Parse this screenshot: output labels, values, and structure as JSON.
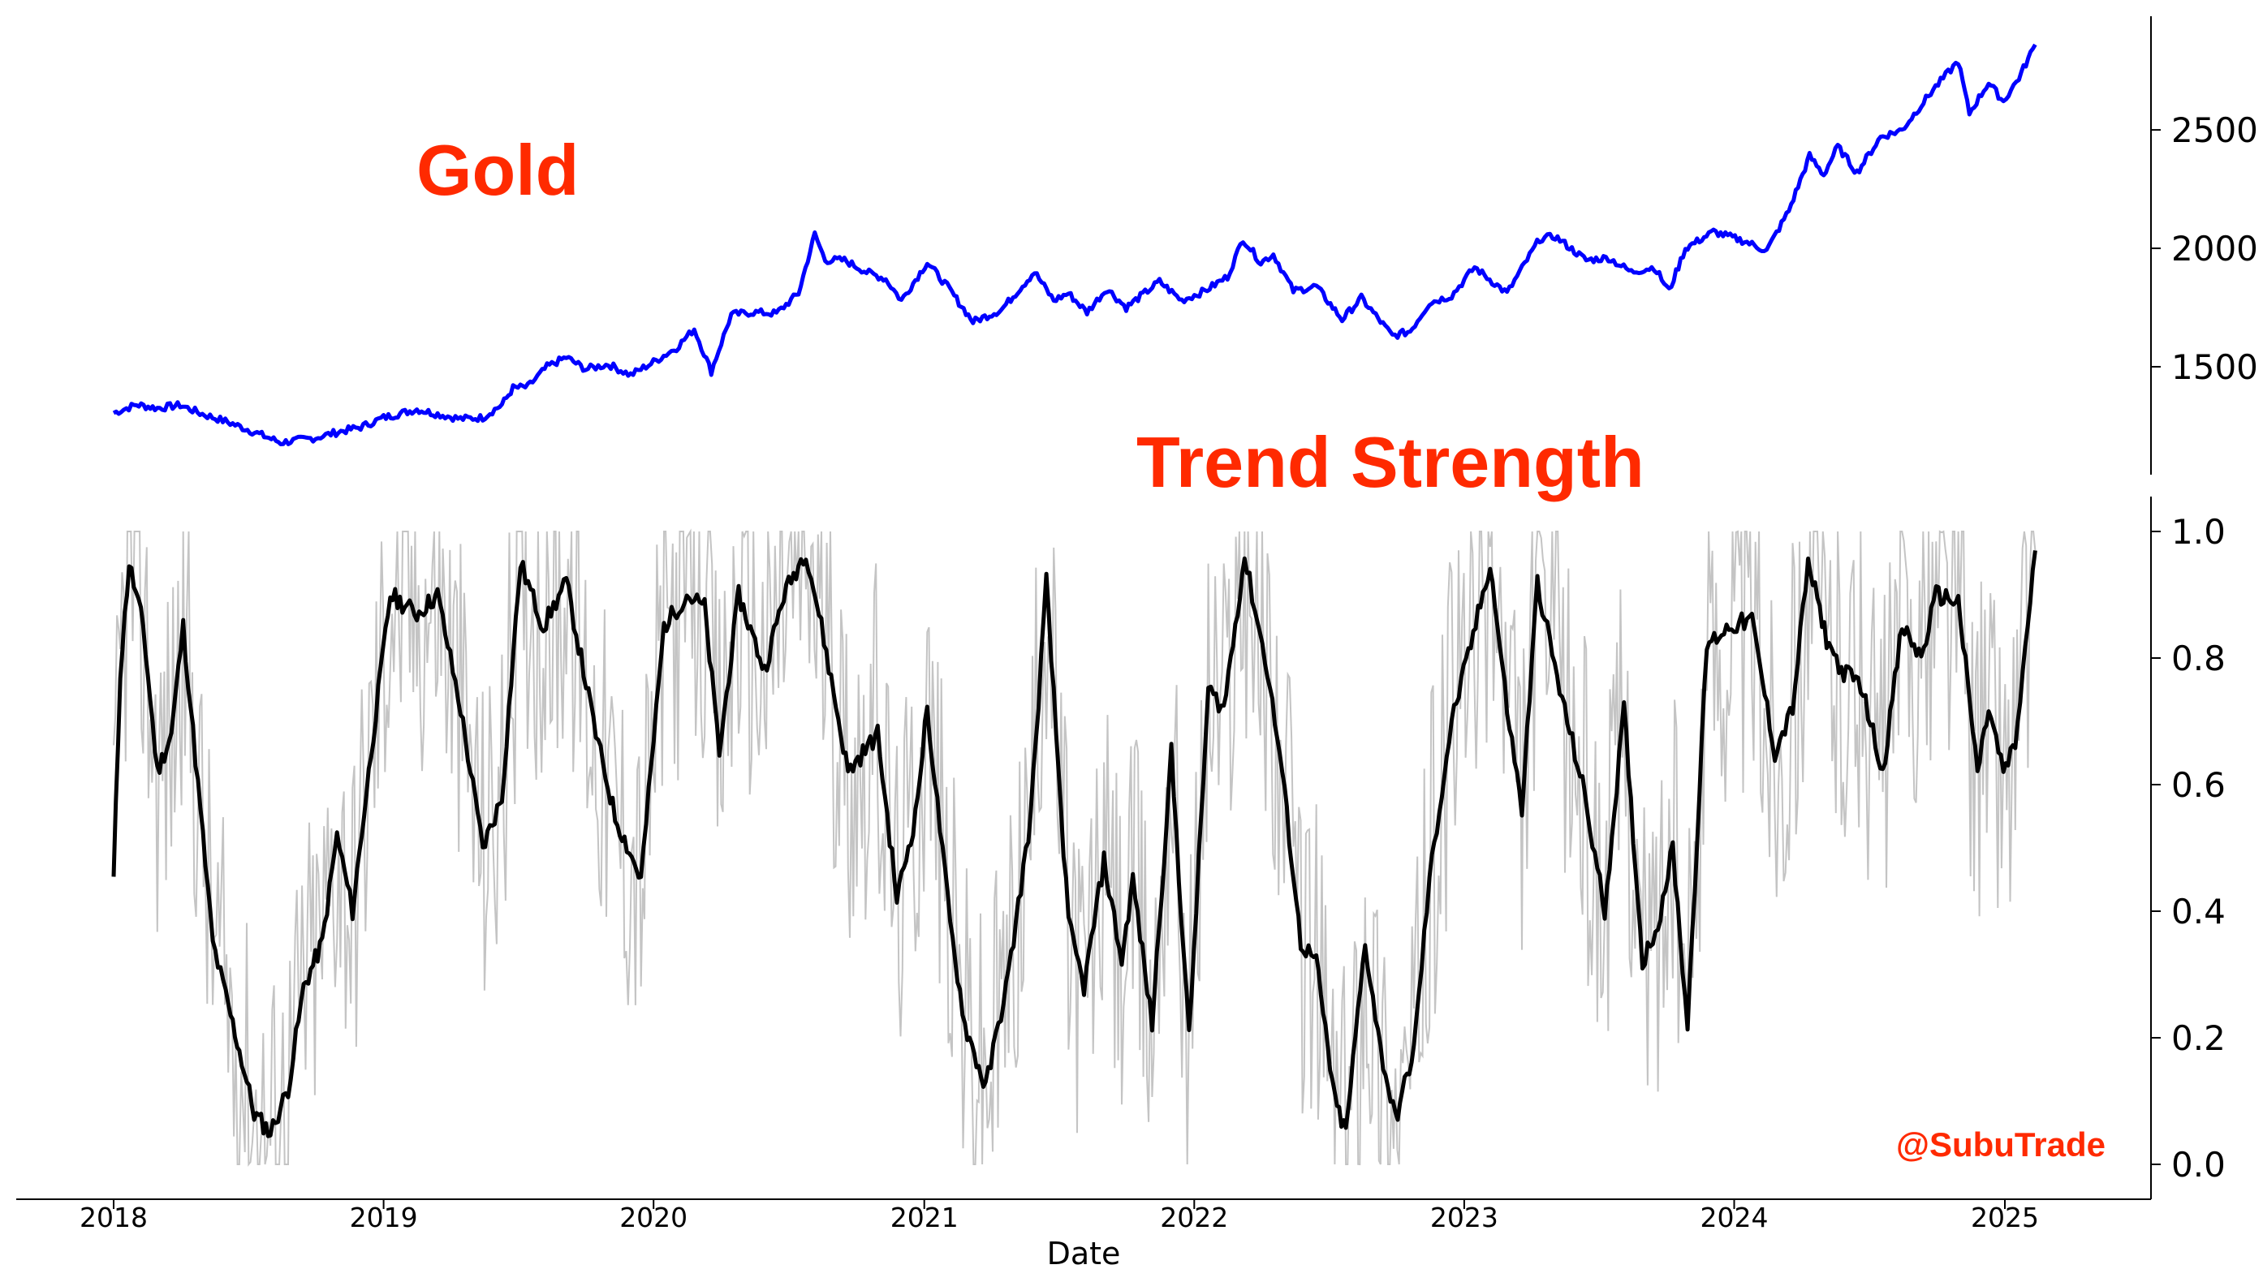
{
  "chart_data": [
    {
      "type": "line",
      "panel": "top",
      "title": "Gold",
      "title_color": "#ff2a00",
      "axis_side": "right",
      "ylim": [
        1130,
        2980
      ],
      "yticks": [
        1500,
        2000,
        2500
      ],
      "series": [
        {
          "color": "#0000ff",
          "points": [
            [
              "2018-01-01",
              1305
            ],
            [
              "2018-02-01",
              1340
            ],
            [
              "2018-03-01",
              1325
            ],
            [
              "2018-04-01",
              1338
            ],
            [
              "2018-05-01",
              1300
            ],
            [
              "2018-06-01",
              1270
            ],
            [
              "2018-07-01",
              1235
            ],
            [
              "2018-08-15",
              1180
            ],
            [
              "2018-10-01",
              1200
            ],
            [
              "2018-11-01",
              1225
            ],
            [
              "2018-12-01",
              1245
            ],
            [
              "2019-01-01",
              1285
            ],
            [
              "2019-02-15",
              1320
            ],
            [
              "2019-03-15",
              1300
            ],
            [
              "2019-04-15",
              1280
            ],
            [
              "2019-05-15",
              1285
            ],
            [
              "2019-06-10",
              1340
            ],
            [
              "2019-06-25",
              1410
            ],
            [
              "2019-07-15",
              1415
            ],
            [
              "2019-08-10",
              1500
            ],
            [
              "2019-09-05",
              1540
            ],
            [
              "2019-10-01",
              1490
            ],
            [
              "2019-11-01",
              1510
            ],
            [
              "2019-12-01",
              1465
            ],
            [
              "2020-01-01",
              1520
            ],
            [
              "2020-02-01",
              1580
            ],
            [
              "2020-02-25",
              1660
            ],
            [
              "2020-03-19",
              1480
            ],
            [
              "2020-04-15",
              1720
            ],
            [
              "2020-05-15",
              1730
            ],
            [
              "2020-06-15",
              1725
            ],
            [
              "2020-07-15",
              1810
            ],
            [
              "2020-08-06",
              2060
            ],
            [
              "2020-08-20",
              1950
            ],
            [
              "2020-09-15",
              1950
            ],
            [
              "2020-10-15",
              1900
            ],
            [
              "2020-11-10",
              1870
            ],
            [
              "2020-12-01",
              1780
            ],
            [
              "2021-01-05",
              1940
            ],
            [
              "2021-02-01",
              1840
            ],
            [
              "2021-03-08",
              1690
            ],
            [
              "2021-04-15",
              1740
            ],
            [
              "2021-05-30",
              1900
            ],
            [
              "2021-06-25",
              1780
            ],
            [
              "2021-07-15",
              1810
            ],
            [
              "2021-08-09",
              1730
            ],
            [
              "2021-09-05",
              1830
            ],
            [
              "2021-10-01",
              1750
            ],
            [
              "2021-11-15",
              1860
            ],
            [
              "2021-12-15",
              1780
            ],
            [
              "2022-01-15",
              1820
            ],
            [
              "2022-02-15",
              1880
            ],
            [
              "2022-03-08",
              2040
            ],
            [
              "2022-04-01",
              1940
            ],
            [
              "2022-04-18",
              1975
            ],
            [
              "2022-05-15",
              1820
            ],
            [
              "2022-06-15",
              1840
            ],
            [
              "2022-07-20",
              1700
            ],
            [
              "2022-08-15",
              1790
            ],
            [
              "2022-09-26",
              1630
            ],
            [
              "2022-10-20",
              1650
            ],
            [
              "2022-11-15",
              1770
            ],
            [
              "2022-12-15",
              1800
            ],
            [
              "2023-01-15",
              1920
            ],
            [
              "2023-02-28",
              1810
            ],
            [
              "2023-04-13",
              2040
            ],
            [
              "2023-05-04",
              2050
            ],
            [
              "2023-06-15",
              1950
            ],
            [
              "2023-07-15",
              1960
            ],
            [
              "2023-08-15",
              1900
            ],
            [
              "2023-09-15",
              1920
            ],
            [
              "2023-10-05",
              1820
            ],
            [
              "2023-10-27",
              2000
            ],
            [
              "2023-12-04",
              2070
            ],
            [
              "2024-01-15",
              2030
            ],
            [
              "2024-02-14",
              1990
            ],
            [
              "2024-03-15",
              2160
            ],
            [
              "2024-04-12",
              2390
            ],
            [
              "2024-05-01",
              2310
            ],
            [
              "2024-05-20",
              2430
            ],
            [
              "2024-06-15",
              2320
            ],
            [
              "2024-07-17",
              2470
            ],
            [
              "2024-08-15",
              2500
            ],
            [
              "2024-09-26",
              2670
            ],
            [
              "2024-10-30",
              2790
            ],
            [
              "2024-11-14",
              2570
            ],
            [
              "2024-12-10",
              2700
            ],
            [
              "2024-12-30",
              2620
            ],
            [
              "2025-01-20",
              2720
            ],
            [
              "2025-02-11",
              2860
            ]
          ]
        }
      ]
    },
    {
      "type": "line",
      "panel": "bottom",
      "title": "Trend Strength",
      "title_color": "#ff2a00",
      "axis_side": "right",
      "xlabel": "Date",
      "xticks": [
        "2018",
        "2019",
        "2020",
        "2021",
        "2022",
        "2023",
        "2024",
        "2025"
      ],
      "ylim": [
        -0.05,
        1.05
      ],
      "yticks": [
        "0.0",
        "0.2",
        "0.4",
        "0.6",
        "0.8",
        "1.0"
      ],
      "series": [
        {
          "role": "smoothed",
          "color": "#000000",
          "points": [
            [
              "2018-01-01",
              0.45
            ],
            [
              "2018-01-10",
              0.78
            ],
            [
              "2018-01-22",
              0.95
            ],
            [
              "2018-02-10",
              0.85
            ],
            [
              "2018-03-01",
              0.62
            ],
            [
              "2018-03-20",
              0.68
            ],
            [
              "2018-04-05",
              0.85
            ],
            [
              "2018-04-25",
              0.6
            ],
            [
              "2018-05-15",
              0.35
            ],
            [
              "2018-06-05",
              0.25
            ],
            [
              "2018-06-20",
              0.18
            ],
            [
              "2018-07-10",
              0.08
            ],
            [
              "2018-08-01",
              0.05
            ],
            [
              "2018-08-25",
              0.12
            ],
            [
              "2018-09-15",
              0.28
            ],
            [
              "2018-10-10",
              0.35
            ],
            [
              "2018-10-30",
              0.52
            ],
            [
              "2018-11-20",
              0.4
            ],
            [
              "2018-12-15",
              0.65
            ],
            [
              "2019-01-10",
              0.9
            ],
            [
              "2019-02-15",
              0.87
            ],
            [
              "2019-03-15",
              0.9
            ],
            [
              "2019-04-15",
              0.72
            ],
            [
              "2019-05-15",
              0.5
            ],
            [
              "2019-06-10",
              0.58
            ],
            [
              "2019-07-05",
              0.95
            ],
            [
              "2019-08-05",
              0.85
            ],
            [
              "2019-09-05",
              0.92
            ],
            [
              "2019-10-15",
              0.68
            ],
            [
              "2019-11-10",
              0.55
            ],
            [
              "2019-12-15",
              0.45
            ],
            [
              "2020-01-15",
              0.85
            ],
            [
              "2020-02-15",
              0.9
            ],
            [
              "2020-03-10",
              0.88
            ],
            [
              "2020-03-30",
              0.65
            ],
            [
              "2020-04-25",
              0.9
            ],
            [
              "2020-05-30",
              0.78
            ],
            [
              "2020-06-25",
              0.9
            ],
            [
              "2020-07-25",
              0.97
            ],
            [
              "2020-08-15",
              0.85
            ],
            [
              "2020-09-20",
              0.62
            ],
            [
              "2020-10-30",
              0.68
            ],
            [
              "2020-11-25",
              0.42
            ],
            [
              "2020-12-20",
              0.55
            ],
            [
              "2021-01-05",
              0.72
            ],
            [
              "2021-02-05",
              0.38
            ],
            [
              "2021-02-25",
              0.22
            ],
            [
              "2021-03-25",
              0.12
            ],
            [
              "2021-04-25",
              0.3
            ],
            [
              "2021-05-25",
              0.55
            ],
            [
              "2021-06-15",
              0.92
            ],
            [
              "2021-07-15",
              0.38
            ],
            [
              "2021-08-05",
              0.28
            ],
            [
              "2021-09-01",
              0.48
            ],
            [
              "2021-09-25",
              0.32
            ],
            [
              "2021-10-10",
              0.45
            ],
            [
              "2021-11-05",
              0.22
            ],
            [
              "2021-12-01",
              0.65
            ],
            [
              "2021-12-25",
              0.2
            ],
            [
              "2022-01-20",
              0.75
            ],
            [
              "2022-02-10",
              0.72
            ],
            [
              "2022-03-10",
              0.96
            ],
            [
              "2022-04-10",
              0.78
            ],
            [
              "2022-04-30",
              0.62
            ],
            [
              "2022-05-25",
              0.35
            ],
            [
              "2022-06-15",
              0.32
            ],
            [
              "2022-07-10",
              0.1
            ],
            [
              "2022-07-25",
              0.05
            ],
            [
              "2022-08-20",
              0.35
            ],
            [
              "2022-09-10",
              0.18
            ],
            [
              "2022-09-30",
              0.07
            ],
            [
              "2022-10-25",
              0.18
            ],
            [
              "2022-11-15",
              0.45
            ],
            [
              "2022-12-15",
              0.7
            ],
            [
              "2023-01-10",
              0.82
            ],
            [
              "2023-02-05",
              0.95
            ],
            [
              "2023-02-28",
              0.72
            ],
            [
              "2023-03-20",
              0.56
            ],
            [
              "2023-04-10",
              0.92
            ],
            [
              "2023-05-10",
              0.75
            ],
            [
              "2023-06-10",
              0.6
            ],
            [
              "2023-07-10",
              0.4
            ],
            [
              "2023-08-05",
              0.72
            ],
            [
              "2023-08-30",
              0.32
            ],
            [
              "2023-09-20",
              0.38
            ],
            [
              "2023-10-10",
              0.5
            ],
            [
              "2023-10-30",
              0.22
            ],
            [
              "2023-11-25",
              0.82
            ],
            [
              "2023-12-25",
              0.85
            ],
            [
              "2024-01-25",
              0.86
            ],
            [
              "2024-02-25",
              0.65
            ],
            [
              "2024-03-20",
              0.72
            ],
            [
              "2024-04-10",
              0.95
            ],
            [
              "2024-05-05",
              0.83
            ],
            [
              "2024-05-25",
              0.78
            ],
            [
              "2024-06-20",
              0.76
            ],
            [
              "2024-07-20",
              0.62
            ],
            [
              "2024-08-15",
              0.85
            ],
            [
              "2024-09-10",
              0.8
            ],
            [
              "2024-09-30",
              0.9
            ],
            [
              "2024-10-30",
              0.89
            ],
            [
              "2024-11-25",
              0.62
            ],
            [
              "2024-12-10",
              0.72
            ],
            [
              "2024-12-30",
              0.62
            ],
            [
              "2025-01-15",
              0.66
            ],
            [
              "2025-02-11",
              0.97
            ]
          ]
        }
      ],
      "raw_series": {
        "color": "#c0c0c0",
        "start": "2018-01-01",
        "end": "2025-02-11",
        "note": "raw daily signal shown as light grey band around the smoothed line, clipped to 0..1"
      }
    }
  ],
  "watermark": {
    "text": "@SubuTrade",
    "color": "#ff2a00"
  }
}
